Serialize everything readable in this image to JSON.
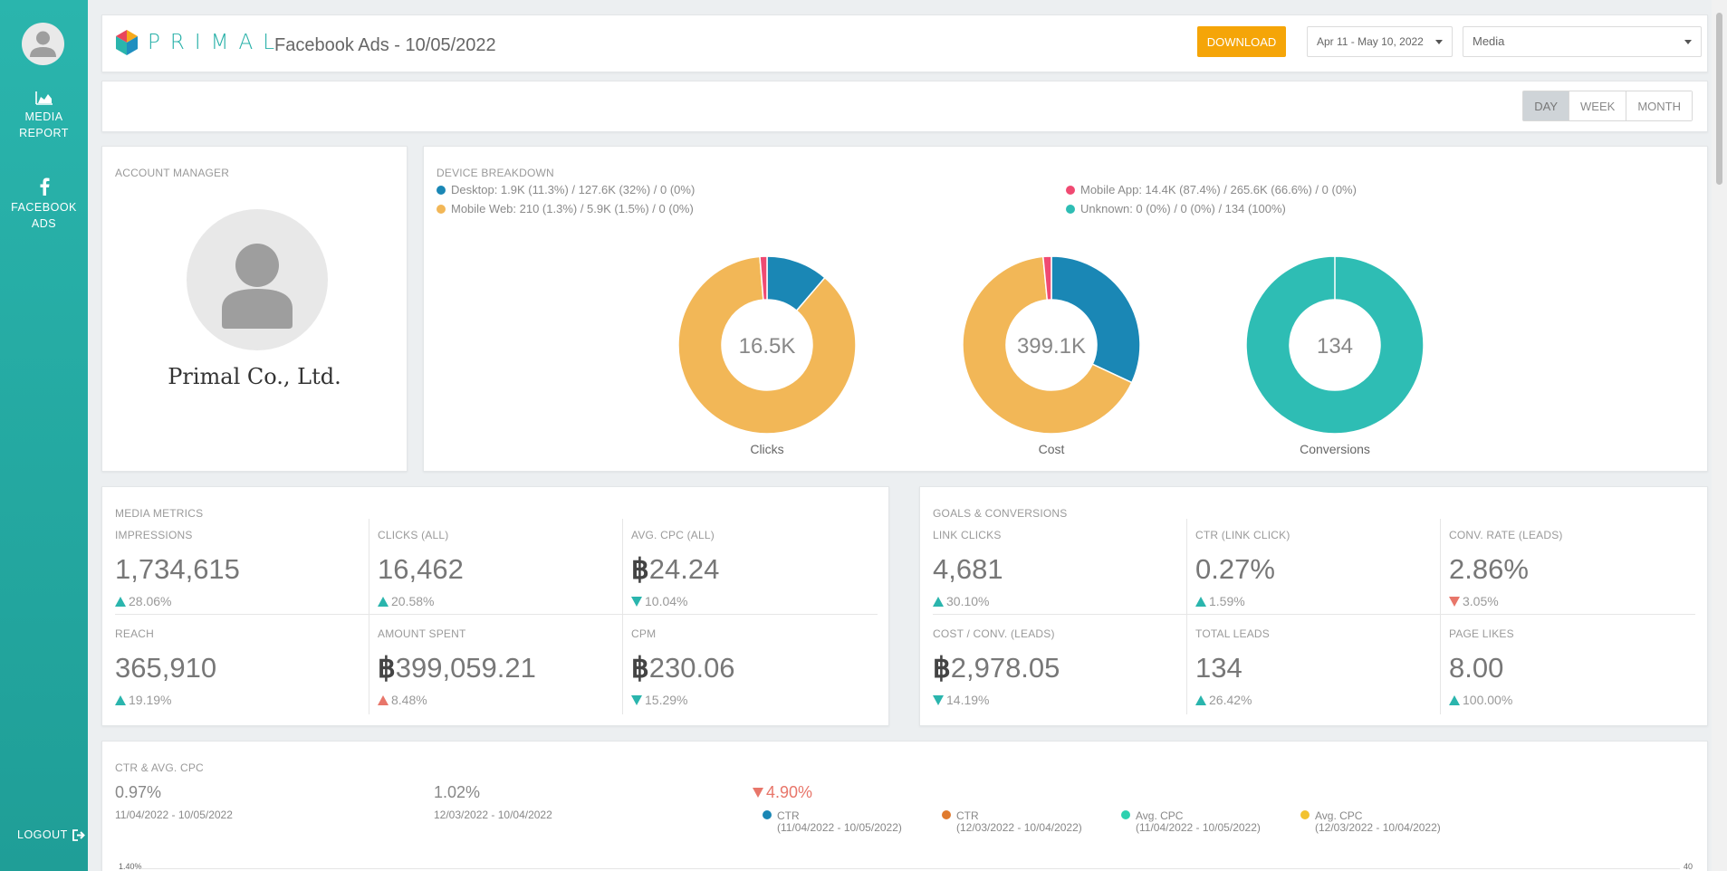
{
  "sidebar": {
    "items": [
      {
        "label_1": "MEDIA",
        "label_2": "REPORT",
        "icon": "area-chart-icon"
      },
      {
        "label_1": "FACEBOOK",
        "label_2": "ADS",
        "icon": "facebook-icon"
      }
    ],
    "logout_label": "LOGOUT"
  },
  "header": {
    "brand": "PRIMAL",
    "title": "Facebook Ads - 10/05/2022",
    "download_label": "DOWNLOAD",
    "date_range": "Apr 11 - May 10, 2022",
    "view_select": "Media"
  },
  "period": {
    "day": "DAY",
    "week": "WEEK",
    "month": "MONTH",
    "selected": "DAY"
  },
  "account_manager": {
    "title": "ACCOUNT MANAGER",
    "name": "Primal Co., Ltd."
  },
  "device_breakdown": {
    "title": "DEVICE BREAKDOWN",
    "legend": [
      {
        "text": "Desktop: 1.9K (11.3%) / 127.6K (32%) / 0 (0%)",
        "color": "#1a87b5"
      },
      {
        "text": "Mobile Web: 210 (1.3%) / 5.9K (1.5%) / 0 (0%)",
        "color": "#f2b757"
      },
      {
        "text": "Mobile App: 14.4K (87.4%) / 265.6K (66.6%) / 0 (0%)",
        "color": "#f04a72"
      },
      {
        "text": "Unknown: 0 (0%) / 0 (0%) / 134 (100%)",
        "color": "#2ebdb4"
      }
    ],
    "donuts": [
      {
        "label": "Clicks",
        "center": "16.5K",
        "slices": [
          11.3,
          87.4,
          1.3,
          0
        ]
      },
      {
        "label": "Cost",
        "center": "399.1K",
        "slices": [
          32,
          66.6,
          1.5,
          0
        ]
      },
      {
        "label": "Conversions",
        "center": "134",
        "slices": [
          0,
          0,
          0,
          100
        ]
      }
    ]
  },
  "media_metrics": {
    "title": "MEDIA METRICS",
    "items": [
      {
        "label": "IMPRESSIONS",
        "currency": "",
        "value": "1,734,615",
        "delta": "28.06%",
        "dir": "up",
        "tone": "good"
      },
      {
        "label": "CLICKS (ALL)",
        "currency": "",
        "value": "16,462",
        "delta": "20.58%",
        "dir": "up",
        "tone": "good"
      },
      {
        "label": "AVG. CPC (ALL)",
        "currency": "฿",
        "value": "24.24",
        "delta": "10.04%",
        "dir": "down",
        "tone": "good"
      },
      {
        "label": "REACH",
        "currency": "",
        "value": "365,910",
        "delta": "19.19%",
        "dir": "up",
        "tone": "good"
      },
      {
        "label": "AMOUNT SPENT",
        "currency": "฿",
        "value": "399,059.21",
        "delta": "8.48%",
        "dir": "up",
        "tone": "bad"
      },
      {
        "label": "CPM",
        "currency": "฿",
        "value": "230.06",
        "delta": "15.29%",
        "dir": "down",
        "tone": "good"
      }
    ]
  },
  "goals": {
    "title": "GOALS & CONVERSIONS",
    "items": [
      {
        "label": "LINK CLICKS",
        "currency": "",
        "value": "4,681",
        "delta": "30.10%",
        "dir": "up",
        "tone": "good"
      },
      {
        "label": "CTR (LINK CLICK)",
        "currency": "",
        "value": "0.27%",
        "delta": "1.59%",
        "dir": "up",
        "tone": "good"
      },
      {
        "label": "CONV. RATE (LEADS)",
        "currency": "",
        "value": "2.86%",
        "delta": "3.05%",
        "dir": "down",
        "tone": "bad"
      },
      {
        "label": "COST / CONV. (LEADS)",
        "currency": "฿",
        "value": "2,978.05",
        "delta": "14.19%",
        "dir": "down",
        "tone": "good"
      },
      {
        "label": "TOTAL LEADS",
        "currency": "",
        "value": "134",
        "delta": "26.42%",
        "dir": "up",
        "tone": "good"
      },
      {
        "label": "PAGE LIKES",
        "currency": "",
        "value": "8.00",
        "delta": "100.00%",
        "dir": "up",
        "tone": "good"
      }
    ]
  },
  "ctr_cpc": {
    "title": "CTR & AVG. CPC",
    "stats": [
      {
        "value": "0.97%",
        "range": "11/04/2022 - 10/05/2022"
      },
      {
        "value": "1.02%",
        "range": "12/03/2022 - 10/04/2022"
      }
    ],
    "change": "4.90%",
    "legend": [
      {
        "name": "CTR",
        "range": "(11/04/2022 - 10/05/2022)",
        "color": "#1a87b5"
      },
      {
        "name": "CTR",
        "range": "(12/03/2022 - 10/04/2022)",
        "color": "#e07a2e"
      },
      {
        "name": "Avg. CPC",
        "range": "(11/04/2022 - 10/05/2022)",
        "color": "#2ed1b0"
      },
      {
        "name": "Avg. CPC",
        "range": "(12/03/2022 - 10/04/2022)",
        "color": "#f2c230"
      }
    ],
    "y_left_top": "1.40%",
    "y_right_top": "40"
  }
}
